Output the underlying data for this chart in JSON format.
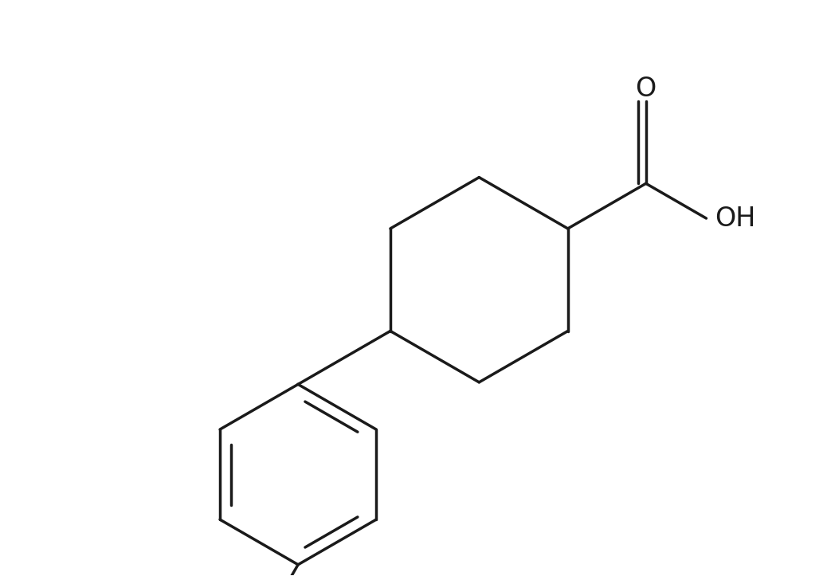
{
  "background_color": "#ffffff",
  "line_color": "#1a1a1a",
  "line_width": 2.5,
  "figsize": [
    10.38,
    7.23
  ],
  "dpi": 100
}
